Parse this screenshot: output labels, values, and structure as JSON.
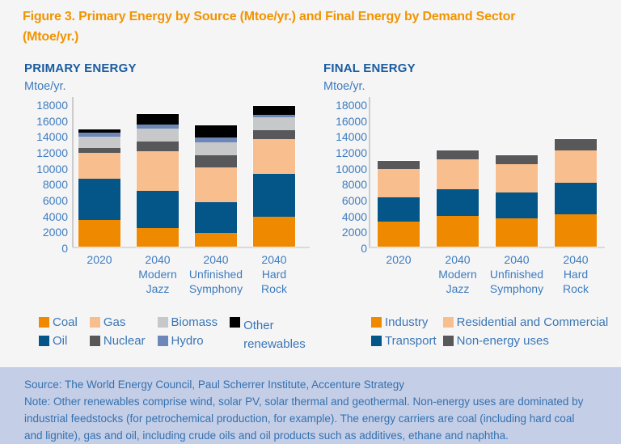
{
  "title": {
    "line1": "Figure 3. Primary Energy by Source (Mtoe/yr.) and Final Energy by Demand Sector",
    "line2": "(Mtoe/yr.)"
  },
  "colors": {
    "title_orange": "#f29400",
    "header_blue": "#1a5ca0",
    "axis_blue": "#3e7cbe",
    "legend_blue": "#3a76b5",
    "page_background": "#f5f5f6",
    "footer_background": "#c5cee7",
    "footer_text": "#3371af"
  },
  "chart_data": [
    {
      "type": "bar",
      "stacked": true,
      "title": "PRIMARY ENERGY",
      "ylabel": "Mtoe/yr.",
      "ylim": [
        0,
        18000
      ],
      "ytick_step": 2000,
      "grid": false,
      "legend_position": "bottom",
      "categories": [
        "2020",
        "2040 Modern Jazz",
        "2040 Unfinished Symphony",
        "2040 Hard Rock"
      ],
      "series": [
        {
          "name": "Coal",
          "color": "#ef8a00",
          "values": [
            3400,
            2300,
            1700,
            3800
          ]
        },
        {
          "name": "Oil",
          "color": "#045588",
          "values": [
            5100,
            4750,
            3900,
            5400
          ]
        },
        {
          "name": "Gas",
          "color": "#f8be8d",
          "values": [
            3350,
            5000,
            4350,
            4300
          ]
        },
        {
          "name": "Nuclear",
          "color": "#58585a",
          "values": [
            600,
            1150,
            1550,
            1100
          ]
        },
        {
          "name": "Biomass",
          "color": "#c7c8ca",
          "values": [
            1400,
            1650,
            1650,
            1650
          ]
        },
        {
          "name": "Hydro",
          "color": "#6d87b8",
          "values": [
            500,
            550,
            550,
            350
          ]
        },
        {
          "name": "Other renewables",
          "color": "#000000",
          "values": [
            400,
            1300,
            1550,
            1100
          ]
        }
      ]
    },
    {
      "type": "bar",
      "stacked": true,
      "title": "FINAL ENERGY",
      "ylabel": "Mtoe/yr.",
      "ylim": [
        0,
        18000
      ],
      "ytick_step": 2000,
      "grid": false,
      "legend_position": "bottom",
      "categories": [
        "2020",
        "2040 Modern Jazz",
        "2040 Unfinished Symphony",
        "2040 Hard Rock"
      ],
      "series": [
        {
          "name": "Industry",
          "color": "#ef8a00",
          "values": [
            3150,
            3850,
            3600,
            4100
          ]
        },
        {
          "name": "Transport",
          "color": "#045588",
          "values": [
            3050,
            3350,
            3200,
            3900
          ]
        },
        {
          "name": "Residential and Commercial",
          "color": "#f8be8d",
          "values": [
            3550,
            3750,
            3600,
            4100
          ]
        },
        {
          "name": "Non-energy uses",
          "color": "#58585a",
          "values": [
            1050,
            1150,
            1050,
            1450
          ]
        }
      ]
    }
  ],
  "footer": {
    "source": "Source: The World Energy Council, Paul Scherrer Institute, Accenture Strategy",
    "note": "Note: Other renewables comprise wind, solar PV, solar thermal and geothermal. Non-energy uses are dominated by industrial feedstocks (for petrochemical production, for example). The energy carriers are coal (including hard coal and lignite), gas and oil, including crude oils and oil products such as additives, ethane and naphtha."
  }
}
